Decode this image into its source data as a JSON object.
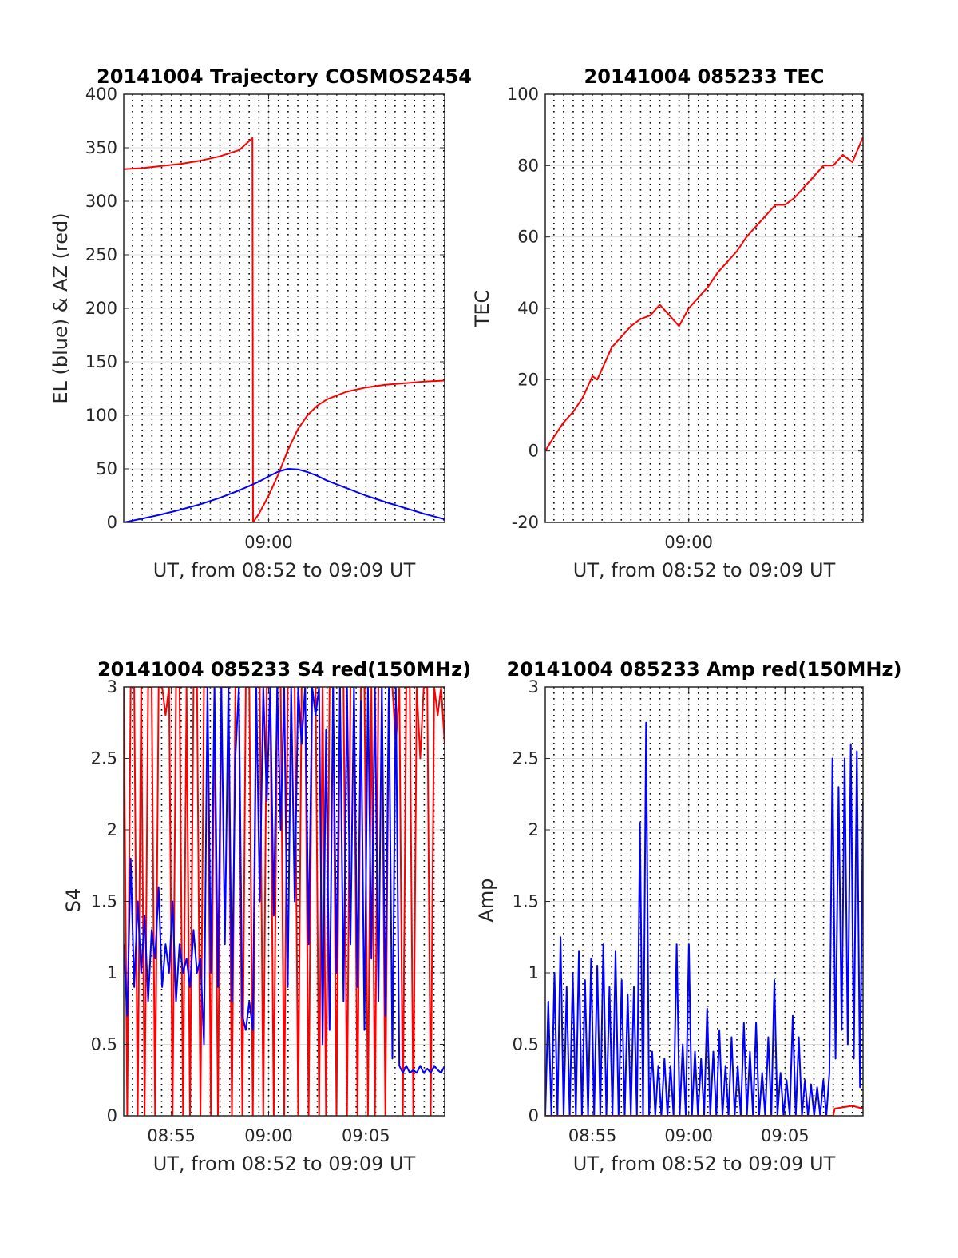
{
  "chart_data": [
    {
      "type": "line",
      "title": "20141004 Trajectory COSMOS2454",
      "xlabel": "UT, from 08:52 to 09:09 UT",
      "ylabel": "EL (blue) & AZ (red)",
      "xlim": [
        "08:52:33",
        "09:09:03"
      ],
      "ylim": [
        0,
        400
      ],
      "yticks": [
        0,
        50,
        100,
        150,
        200,
        250,
        300,
        350,
        400
      ],
      "xticks": [
        {
          "t": "09:00:00",
          "label": "09:00"
        }
      ],
      "grid": true,
      "series": [
        {
          "color": "#ff0000",
          "t": [
            "08:52:33",
            "08:53:30",
            "08:54:30",
            "08:55:30",
            "08:56:30",
            "08:57:30",
            "08:58:30",
            "08:59:10",
            "08:59:12",
            "08:59:30",
            "09:00:00",
            "09:00:30",
            "09:01:00",
            "09:01:30",
            "09:02:00",
            "09:02:30",
            "09:03:00",
            "09:04:00",
            "09:05:00",
            "09:06:00",
            "09:07:00",
            "09:08:00",
            "09:09:03"
          ],
          "values": [
            330,
            331,
            333,
            335,
            338,
            342,
            348,
            359,
            0,
            8,
            25,
            45,
            68,
            87,
            100,
            109,
            115,
            122,
            126,
            128.5,
            130,
            131.5,
            132.5
          ]
        },
        {
          "color": "#0000ff",
          "t": [
            "08:52:33",
            "08:53:30",
            "08:54:30",
            "08:55:30",
            "08:56:30",
            "08:57:30",
            "08:58:30",
            "08:59:30",
            "09:00:00",
            "09:00:30",
            "09:01:00",
            "09:01:30",
            "09:02:00",
            "09:02:30",
            "09:03:00",
            "09:04:00",
            "09:05:00",
            "09:06:00",
            "09:07:00",
            "09:08:00",
            "09:09:03"
          ],
          "values": [
            0,
            3.5,
            7.5,
            12,
            17,
            23,
            30,
            38,
            43,
            47.5,
            50,
            49.5,
            47,
            43.5,
            39,
            32,
            25,
            19,
            13.5,
            8,
            3
          ]
        }
      ]
    },
    {
      "type": "line",
      "title": "20141004 085233 TEC",
      "xlabel": "UT, from 08:52 to 09:09 UT",
      "ylabel": "TEC",
      "xlim": [
        "08:52:33",
        "09:09:03"
      ],
      "ylim": [
        -20,
        100
      ],
      "yticks": [
        -20,
        0,
        20,
        40,
        60,
        80,
        100
      ],
      "xticks": [
        {
          "t": "09:00:00",
          "label": "09:00"
        }
      ],
      "grid": true,
      "series": [
        {
          "color": "#ff0000",
          "t": [
            "08:52:33",
            "08:53:00",
            "08:53:30",
            "08:54:00",
            "08:54:30",
            "08:55:00",
            "08:55:15",
            "08:55:30",
            "08:56:00",
            "08:56:30",
            "08:57:00",
            "08:57:30",
            "08:58:00",
            "08:58:30",
            "08:59:00",
            "08:59:30",
            "09:00:00",
            "09:00:30",
            "09:01:00",
            "09:01:30",
            "09:02:00",
            "09:02:30",
            "09:03:00",
            "09:03:30",
            "09:04:00",
            "09:04:30",
            "09:05:00",
            "09:05:30",
            "09:06:00",
            "09:06:30",
            "09:07:00",
            "09:07:30",
            "09:08:00",
            "09:08:30",
            "09:09:03"
          ],
          "values": [
            0,
            4,
            8,
            11,
            15,
            21,
            20,
            23,
            29,
            32,
            35,
            37,
            38,
            41,
            38,
            35,
            40,
            43,
            46,
            50,
            53,
            56,
            60,
            63,
            66,
            69,
            69,
            71,
            74,
            77,
            80,
            80,
            83,
            81,
            88
          ]
        }
      ]
    },
    {
      "type": "line",
      "title": "20141004 085233 S4 red(150MHz)",
      "xlabel": "UT, from 08:52 to 09:09 UT",
      "ylabel": "S4",
      "xlim": [
        "08:52:33",
        "09:09:03"
      ],
      "ylim": [
        0,
        3
      ],
      "yticks": [
        0,
        0.5,
        1,
        1.5,
        2,
        2.5,
        3
      ],
      "yticklabels": [
        "0",
        "0.5",
        "1",
        "1.5",
        "2",
        "2.5",
        "3"
      ],
      "xticks": [
        {
          "t": "08:55:00",
          "label": "08:55"
        },
        {
          "t": "09:00:00",
          "label": "09:00"
        },
        {
          "t": "09:05:00",
          "label": "09:05"
        }
      ],
      "grid": true,
      "series": [
        {
          "color": "#ff0000",
          "t_start": "08:52:33",
          "t_end": "09:09:03",
          "values": [
            3,
            0,
            3,
            3,
            0,
            3,
            0,
            3,
            3,
            0,
            3,
            3,
            2.8,
            3,
            0,
            3,
            3,
            0,
            3,
            0,
            3,
            3,
            0,
            3,
            3,
            0,
            3,
            0,
            3,
            3,
            3,
            0,
            3,
            3,
            0,
            3,
            3,
            0,
            3,
            3,
            0,
            3,
            3,
            0,
            3,
            3,
            0,
            3,
            3,
            3,
            0,
            3,
            3,
            0,
            3,
            3,
            0,
            3,
            0,
            3,
            3,
            0,
            3,
            3,
            0,
            3,
            3,
            0,
            3,
            3,
            0,
            3,
            0,
            3,
            3,
            0,
            3,
            3,
            2.6,
            3,
            0,
            3,
            3,
            0,
            3,
            2.5,
            3,
            3,
            0,
            3,
            2.8,
            3,
            2.6
          ]
        },
        {
          "color": "#0000ff",
          "t_start": "08:52:33",
          "t_end": "09:09:03",
          "values": [
            1.2,
            0.7,
            1.8,
            0.9,
            1.5,
            1.0,
            1.4,
            0.8,
            1.3,
            1.1,
            1.6,
            0.9,
            1.2,
            1.0,
            1.5,
            0.8,
            1.2,
            1.0,
            1.1,
            0.9,
            1.3,
            1.0,
            1.1,
            0.5,
            3,
            1.0,
            3,
            0.9,
            3,
            1.2,
            3,
            0.8,
            2.5,
            3,
            0.7,
            0.6,
            0.8,
            0.6,
            3,
            1.5,
            3,
            2.2,
            3,
            1.4,
            3,
            2.0,
            3,
            0.9,
            3,
            1.5,
            3,
            2.6,
            3,
            1.2,
            3,
            2.8,
            3,
            0.5,
            2.7,
            0.6,
            3,
            1.0,
            3,
            0.8,
            3,
            1.2,
            3,
            0.9,
            2.9,
            0.6,
            3,
            1.1,
            3,
            0.8,
            3,
            0.7,
            3,
            0.4,
            3,
            0.35,
            0.3,
            0.35,
            0.3,
            0.32,
            0.3,
            0.35,
            0.3,
            0.33,
            0.3,
            0.35,
            0.32,
            0.3,
            0.35
          ]
        }
      ]
    },
    {
      "type": "line",
      "title": "20141004 085233 Amp red(150MHz)",
      "xlabel": "UT, from 08:52 to 09:09 UT",
      "ylabel": "Amp",
      "xlim": [
        "08:52:33",
        "09:09:03"
      ],
      "ylim": [
        0,
        3
      ],
      "yticks": [
        0,
        0.5,
        1,
        1.5,
        2,
        2.5,
        3
      ],
      "yticklabels": [
        "0",
        "0.5",
        "1",
        "1.5",
        "2",
        "2.5",
        "3"
      ],
      "xticks": [
        {
          "t": "08:55:00",
          "label": "08:55"
        },
        {
          "t": "09:00:00",
          "label": "09:00"
        },
        {
          "t": "09:05:00",
          "label": "09:05"
        }
      ],
      "grid": true,
      "series": [
        {
          "color": "#0000ff",
          "t_start": "08:52:33",
          "t_end": "09:09:03",
          "values": [
            0,
            0.8,
            0,
            1.0,
            0,
            1.25,
            0,
            0.9,
            0,
            1.0,
            0,
            1.15,
            0,
            0.95,
            0,
            1.1,
            0,
            1.05,
            0,
            1.2,
            0,
            0.9,
            0,
            1.15,
            0,
            0.95,
            0,
            0.85,
            0,
            0.9,
            0,
            2.05,
            0,
            2.75,
            0,
            0.45,
            0,
            0.35,
            0,
            0.4,
            0,
            0.35,
            0,
            1.2,
            0,
            0.5,
            0,
            1.2,
            0,
            0.45,
            0,
            0.4,
            0,
            0.75,
            0,
            0.45,
            0,
            0.6,
            0,
            0.35,
            0,
            0.55,
            0,
            0.35,
            0,
            0.65,
            0,
            0.45,
            0,
            0.65,
            0,
            0.3,
            0,
            0.55,
            0,
            0.95,
            0,
            0.3,
            0,
            0.25,
            0,
            0.7,
            0,
            0.55,
            0,
            0.25,
            0,
            0.22,
            0,
            0.2,
            0,
            0.25,
            0,
            0.3,
            2.5,
            0.4,
            2.3,
            0.6,
            2.5,
            0.5,
            2.6,
            0.4,
            2.55,
            0.2,
            2.2
          ]
        },
        {
          "color": "#ff0000",
          "t": [
            "08:52:33",
            "09:07:30",
            "09:07:35",
            "09:08:00",
            "09:08:30",
            "09:09:03"
          ],
          "values": [
            0,
            0,
            0.05,
            0.06,
            0.07,
            0.05
          ]
        }
      ]
    }
  ]
}
